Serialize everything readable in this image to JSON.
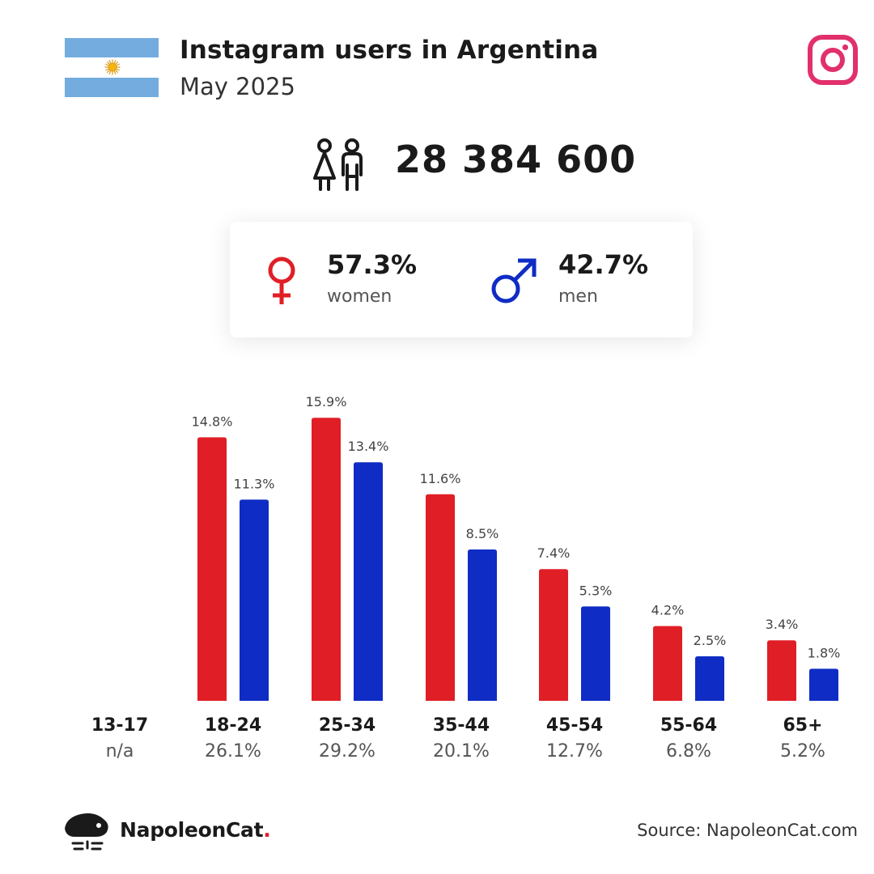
{
  "header": {
    "title": "Instagram users in Argentina",
    "subtitle": "May 2025",
    "flag_icon": "argentina-flag",
    "brand_icon": "instagram-icon"
  },
  "summary": {
    "total_users": "28 384 600",
    "women": {
      "percent": "57.3%",
      "label": "women",
      "color": "#e01e26"
    },
    "men": {
      "percent": "42.7%",
      "label": "men",
      "color": "#0f2cc4"
    }
  },
  "chart_data": {
    "type": "bar",
    "categories": [
      "13-17",
      "18-24",
      "25-34",
      "35-44",
      "45-54",
      "55-64",
      "65+"
    ],
    "category_totals": [
      "n/a",
      "26.1%",
      "29.2%",
      "20.1%",
      "12.7%",
      "6.8%",
      "5.2%"
    ],
    "series": [
      {
        "key": "women",
        "color": "#e01e26",
        "values": [
          null,
          14.8,
          15.9,
          11.6,
          7.4,
          4.2,
          3.4
        ],
        "labels": [
          "",
          "14.8%",
          "15.9%",
          "11.6%",
          "7.4%",
          "4.2%",
          "3.4%"
        ]
      },
      {
        "key": "men",
        "color": "#0f2cc4",
        "values": [
          null,
          11.3,
          13.4,
          8.5,
          5.3,
          2.5,
          1.8
        ],
        "labels": [
          "",
          "11.3%",
          "13.4%",
          "8.5%",
          "5.3%",
          "2.5%",
          "1.8%"
        ]
      }
    ],
    "ylim": [
      0,
      16
    ],
    "grid": false
  },
  "footer": {
    "brand_name": "NapoleonCat",
    "brand_dot": ".",
    "source": "Source: NapoleonCat.com"
  }
}
